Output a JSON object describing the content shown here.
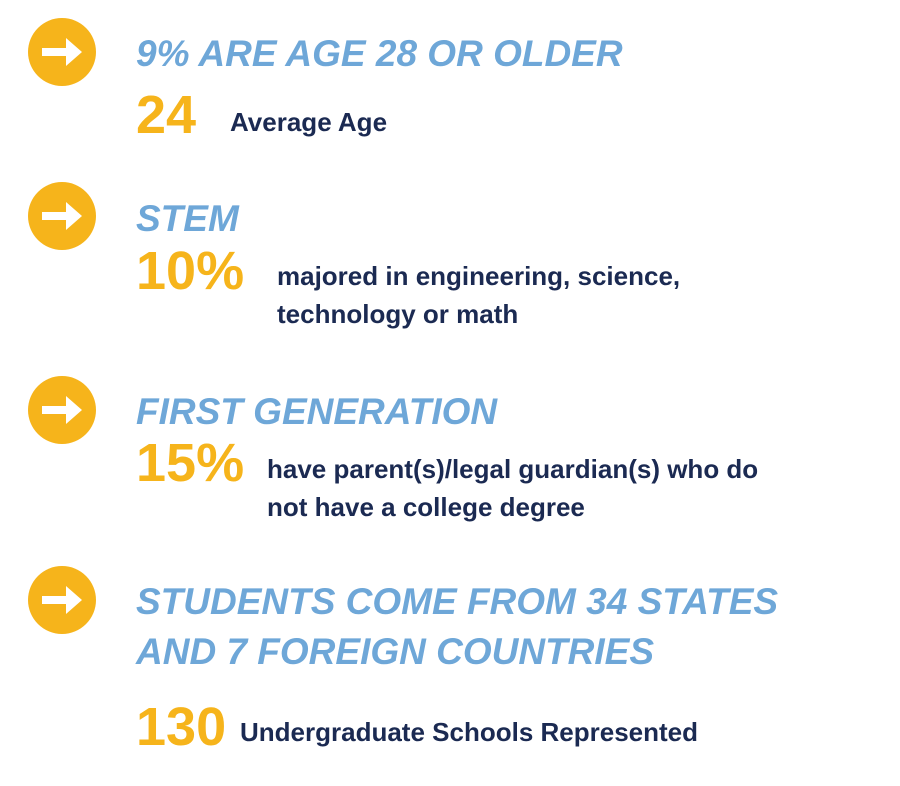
{
  "items": [
    {
      "heading": [
        "9% ARE AGE 28 OR OLDER"
      ],
      "stat": "24",
      "description": [
        "Average Age"
      ]
    },
    {
      "heading": [
        "STEM"
      ],
      "stat": "10%",
      "description": [
        "majored in engineering, science,",
        "technology or math"
      ]
    },
    {
      "heading": [
        "FIRST GENERATION"
      ],
      "stat": "15%",
      "description": [
        "have parent(s)/legal guardian(s) who do",
        "not have a college degree"
      ]
    },
    {
      "heading": [
        "STUDENTS COME FROM 34 STATES",
        "AND 7 FOREIGN COUNTRIES"
      ],
      "stat": "130",
      "description": [
        "Undergraduate Schools Represented"
      ]
    }
  ]
}
